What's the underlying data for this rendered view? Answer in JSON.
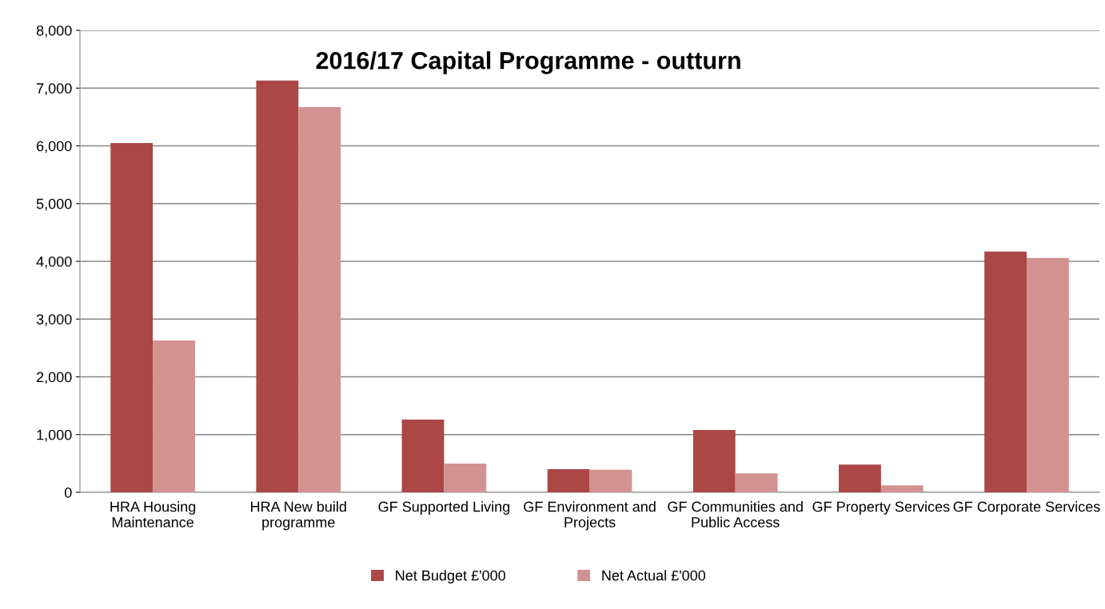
{
  "chart_data": {
    "type": "bar",
    "title": "2016/17 Capital Programme - outturn",
    "categories": [
      "HRA Housing\nMaintenance",
      "HRA New build\nprogramme",
      "GF Supported Living",
      "GF Environment and\nProjects",
      "GF Communities and\nPublic Access",
      "GF Property Services",
      "GF Corporate Services"
    ],
    "series": [
      {
        "name": "Net Budget £'000",
        "color": "#ab4745",
        "values": [
          6050,
          7130,
          1260,
          400,
          1080,
          480,
          4170
        ]
      },
      {
        "name": "Net Actual £'000",
        "color": "#d39292",
        "values": [
          2630,
          6670,
          500,
          390,
          330,
          120,
          4060
        ]
      }
    ],
    "ylim": [
      0,
      8000
    ],
    "yticks": [
      {
        "value": 0,
        "label": "0"
      },
      {
        "value": 1000,
        "label": "1,000"
      },
      {
        "value": 2000,
        "label": "2,000"
      },
      {
        "value": 3000,
        "label": "3,000"
      },
      {
        "value": 4000,
        "label": "4,000"
      },
      {
        "value": 5000,
        "label": "5,000"
      },
      {
        "value": 6000,
        "label": "6,000"
      },
      {
        "value": 7000,
        "label": "7,000"
      },
      {
        "value": 8000,
        "label": "8,000"
      }
    ],
    "grid": "y",
    "legend": "bottom"
  }
}
